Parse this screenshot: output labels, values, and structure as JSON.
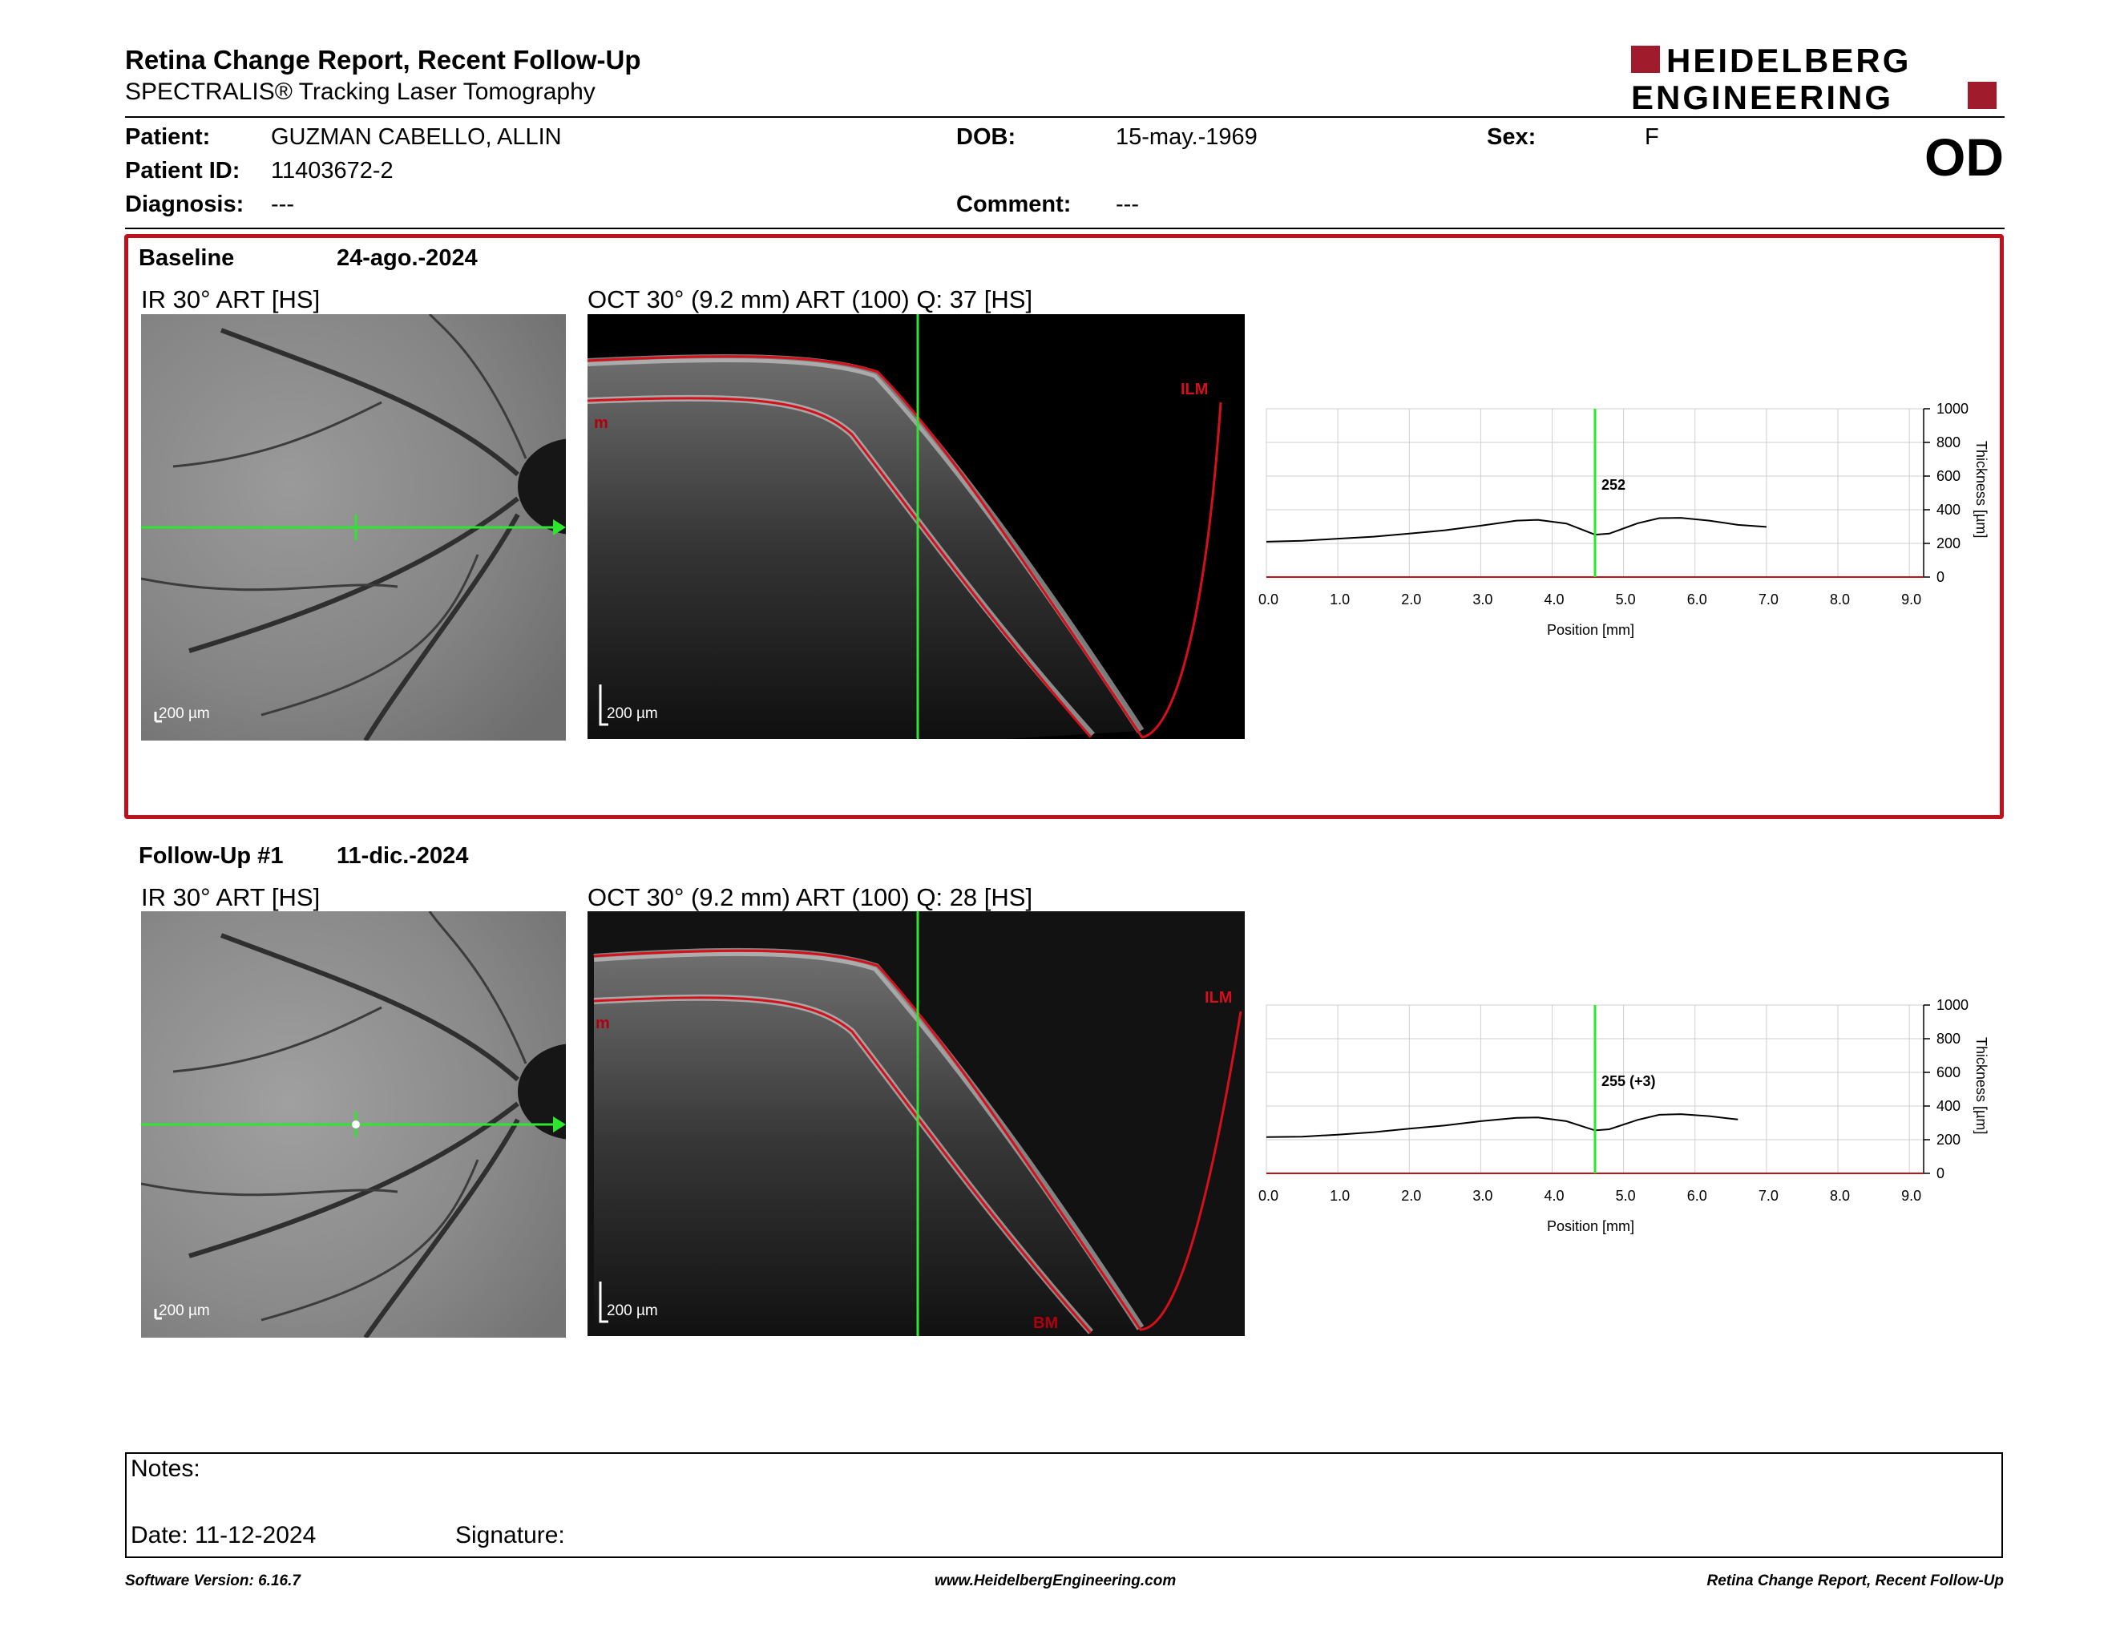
{
  "header": {
    "title": "Retina Change Report, Recent Follow-Up",
    "subtitle": "SPECTRALIS® Tracking Laser Tomography",
    "brand_line1": "HEIDELBERG",
    "brand_line2": "ENGINEERING",
    "brand_color": "#a01c2c"
  },
  "patient": {
    "patient_label": "Patient:",
    "patient_value": "GUZMAN CABELLO, ALLIN",
    "id_label": "Patient ID:",
    "id_value": "11403672-2",
    "diagnosis_label": "Diagnosis:",
    "diagnosis_value": "---",
    "dob_label": "DOB:",
    "dob_value": "15-may.-1969",
    "comment_label": "Comment:",
    "comment_value": "---",
    "sex_label": "Sex:",
    "sex_value": "F",
    "eye": "OD"
  },
  "baseline": {
    "label": "Baseline",
    "date": "24-ago.-2024",
    "ir_title": "IR 30° ART [HS]",
    "oct_title": "OCT 30° (9.2 mm) ART (100) Q: 37 [HS]",
    "scale_ir": "200 µm",
    "scale_oct": "200 µm",
    "ilm_label": "ILM",
    "m_label": "m"
  },
  "followup": {
    "label": "Follow-Up #1",
    "date": "11-dic.-2024",
    "ir_title": "IR 30° ART [HS]",
    "oct_title": "OCT 30° (9.2 mm) ART (100) Q: 28 [HS]",
    "scale_ir": "200 µm",
    "scale_oct": "200 µm",
    "ilm_label": "ILM",
    "m_label": "m",
    "bm_label": "BM"
  },
  "chart_data": [
    {
      "type": "line",
      "x": [
        0.0,
        0.5,
        1.0,
        1.5,
        2.0,
        2.5,
        3.0,
        3.5,
        3.8,
        4.2,
        4.6,
        4.8,
        5.2,
        5.5,
        5.8,
        6.2,
        6.6,
        7.0
      ],
      "series": [
        {
          "values": [
            210,
            215,
            228,
            240,
            258,
            278,
            305,
            335,
            340,
            318,
            252,
            258,
            320,
            350,
            352,
            335,
            310,
            298
          ]
        }
      ],
      "xlabel": "Position [mm]",
      "ylabel": "Thickness [µm]",
      "xticks": [
        "0.0",
        "1.0",
        "2.0",
        "3.0",
        "4.0",
        "5.0",
        "6.0",
        "7.0",
        "8.0",
        "9.0"
      ],
      "yticks": [
        "0",
        "200",
        "400",
        "600",
        "800",
        "1000"
      ],
      "xlim": [
        0,
        9.2
      ],
      "ylim": [
        0,
        1000
      ],
      "marker_x": 4.6,
      "marker_label": "252",
      "grid": true
    },
    {
      "type": "line",
      "x": [
        0.0,
        0.5,
        1.0,
        1.5,
        2.0,
        2.5,
        3.0,
        3.5,
        3.8,
        4.2,
        4.6,
        4.8,
        5.2,
        5.5,
        5.8,
        6.2,
        6.6
      ],
      "series": [
        {
          "values": [
            215,
            218,
            230,
            245,
            265,
            285,
            310,
            330,
            332,
            310,
            255,
            262,
            318,
            348,
            352,
            340,
            320
          ]
        }
      ],
      "xlabel": "Position [mm]",
      "ylabel": "Thickness [µm]",
      "xticks": [
        "0.0",
        "1.0",
        "2.0",
        "3.0",
        "4.0",
        "5.0",
        "6.0",
        "7.0",
        "8.0",
        "9.0"
      ],
      "yticks": [
        "0",
        "200",
        "400",
        "600",
        "800",
        "1000"
      ],
      "xlim": [
        0,
        9.2
      ],
      "ylim": [
        0,
        1000
      ],
      "marker_x": 4.6,
      "marker_label": "255 (+3)",
      "grid": true
    }
  ],
  "notes": {
    "notes_label": "Notes:",
    "date_label": "Date: 11-12-2024",
    "signature_label": "Signature:"
  },
  "footer": {
    "software": "Software Version: 6.16.7",
    "website": "www.HeidelbergEngineering.com",
    "report": "Retina Change Report, Recent Follow-Up"
  }
}
